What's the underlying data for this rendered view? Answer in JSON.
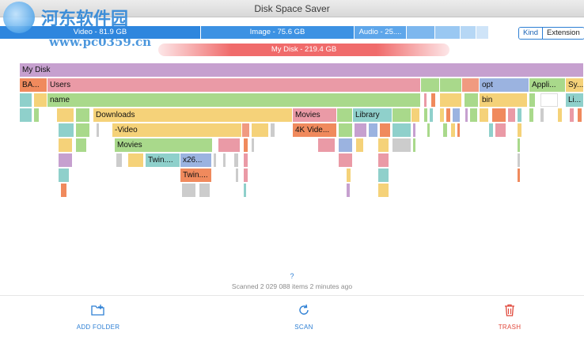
{
  "window": {
    "title": "Disk Space Saver"
  },
  "watermark": {
    "text": "河东软件园",
    "url": "www.pc0359.cn"
  },
  "summary": {
    "segments": [
      {
        "label": "Video - 81.9 GB",
        "color": "#2e86de"
      },
      {
        "label": "Image - 75.6 GB",
        "color": "#3d92e3"
      },
      {
        "label": "Audio - 25....",
        "color": "#5ea6ea"
      },
      {
        "label": "",
        "color": "#7db7ee"
      },
      {
        "label": "",
        "color": "#9ac8f2"
      },
      {
        "label": "",
        "color": "#b6d7f5"
      },
      {
        "label": "",
        "color": "#cfe4f8"
      }
    ],
    "disk": "My Disk - 219.4 GB"
  },
  "toggle": {
    "kind": "Kind",
    "extension": "Extension"
  },
  "tree": {
    "root": "My Disk",
    "labels": {
      "ba": "BA...",
      "users": "Users",
      "opt": "opt",
      "appli": "Appli...",
      "sy": "Sy...",
      "name": "name",
      "bin": "bin",
      "li": "Li...",
      "downloads": "Downloads",
      "movies": "Movies",
      "library": "Library",
      "video": "-Video",
      "video4k": "4K Vide...",
      "movies2": "Movies",
      "twin1": "Twin....",
      "x26": "x26...",
      "twin2": "Twin...."
    }
  },
  "status": {
    "hint": "?",
    "text": "Scanned 2 029 088 items 2 minutes ago"
  },
  "actions": {
    "add_folder": "ADD FOLDER",
    "scan": "SCAN",
    "trash": "TRASH"
  },
  "colors": {
    "accent": "#2d7fd4",
    "trash": "#e0473a"
  }
}
